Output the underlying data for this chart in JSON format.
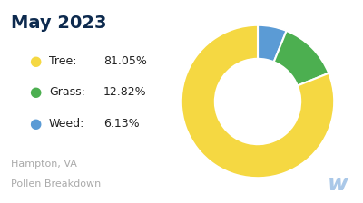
{
  "title": "May 2023",
  "title_color": "#0d2a4e",
  "title_fontsize": 14,
  "title_fontweight": "bold",
  "slices": [
    81.05,
    12.82,
    6.13
  ],
  "labels": [
    "Tree:",
    "Grass:",
    "Weed:"
  ],
  "pct_labels": [
    "81.05%",
    "12.82%",
    "6.13%"
  ],
  "colors": [
    "#f5d842",
    "#4caf50",
    "#5b9bd5"
  ],
  "background_color": "#ffffff",
  "subtitle_line1": "Hampton, VA",
  "subtitle_line2": "Pollen Breakdown",
  "subtitle_color": "#aaaaaa",
  "subtitle_fontsize": 8,
  "legend_fontsize": 9,
  "legend_pct_fontsize": 9,
  "watermark_color": "#aac8e8",
  "watermark_fontsize": 18
}
